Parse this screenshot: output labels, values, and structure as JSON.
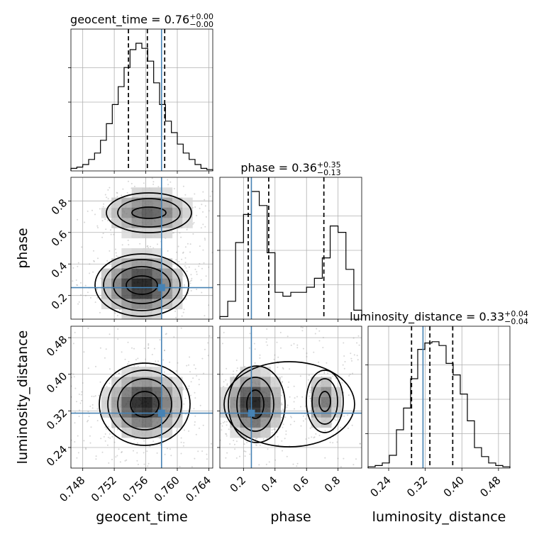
{
  "chart_data": {
    "type": "corner",
    "parameters": [
      {
        "name": "geocent_time",
        "label": "geocent_time",
        "range": [
          0.7465,
          0.7645
        ],
        "ticks": [
          0.748,
          0.752,
          0.756,
          0.76,
          0.764
        ],
        "tick_labels": [
          "0.748",
          "0.752",
          "0.756",
          "0.760",
          "0.764"
        ],
        "truth": 0.758,
        "quantiles": [
          0.7538,
          0.7562,
          0.7584
        ],
        "title_main": "geocent_time = 0.76",
        "title_sup": "+0.00",
        "title_sub": "−0.00",
        "hist": [
          0.02,
          0.03,
          0.05,
          0.09,
          0.14,
          0.24,
          0.37,
          0.52,
          0.66,
          0.81,
          0.95,
          1.0,
          0.96,
          0.86,
          0.69,
          0.52,
          0.39,
          0.3,
          0.21,
          0.14,
          0.09,
          0.05,
          0.02,
          0.01
        ]
      },
      {
        "name": "phase",
        "label": "phase",
        "range": [
          0.05,
          0.95
        ],
        "ticks": [
          0.2,
          0.4,
          0.6,
          0.8
        ],
        "tick_labels": [
          "0.2",
          "0.4",
          "0.6",
          "0.8"
        ],
        "truth": 0.25,
        "quantiles": [
          0.23,
          0.36,
          0.71
        ],
        "title_main": "phase = 0.36",
        "title_sup": "+0.35",
        "title_sub": "−0.13",
        "hist": [
          0.02,
          0.14,
          0.6,
          0.82,
          1.0,
          0.89,
          0.52,
          0.21,
          0.18,
          0.21,
          0.21,
          0.25,
          0.32,
          0.48,
          0.73,
          0.68,
          0.39,
          0.07
        ]
      },
      {
        "name": "luminosity_distance",
        "label": "luminosity_distance",
        "range": [
          0.195,
          0.505
        ],
        "ticks": [
          0.24,
          0.32,
          0.4,
          0.48
        ],
        "tick_labels": [
          "0.24",
          "0.32",
          "0.40",
          "0.48"
        ],
        "truth": 0.315,
        "quantiles": [
          0.29,
          0.33,
          0.38
        ],
        "title_main": "luminosity_distance = 0.33",
        "title_sup": "+0.04",
        "title_sub": "−0.04",
        "hist": [
          0.01,
          0.02,
          0.04,
          0.1,
          0.3,
          0.47,
          0.7,
          0.93,
          0.98,
          0.99,
          0.96,
          0.82,
          0.73,
          0.58,
          0.37,
          0.16,
          0.09,
          0.04,
          0.02,
          0.01
        ]
      }
    ],
    "grid": true,
    "colors": {
      "truth": "#4682b4",
      "contour": "#000000",
      "hist": "#000000",
      "samples": "#8a8a8a"
    }
  }
}
